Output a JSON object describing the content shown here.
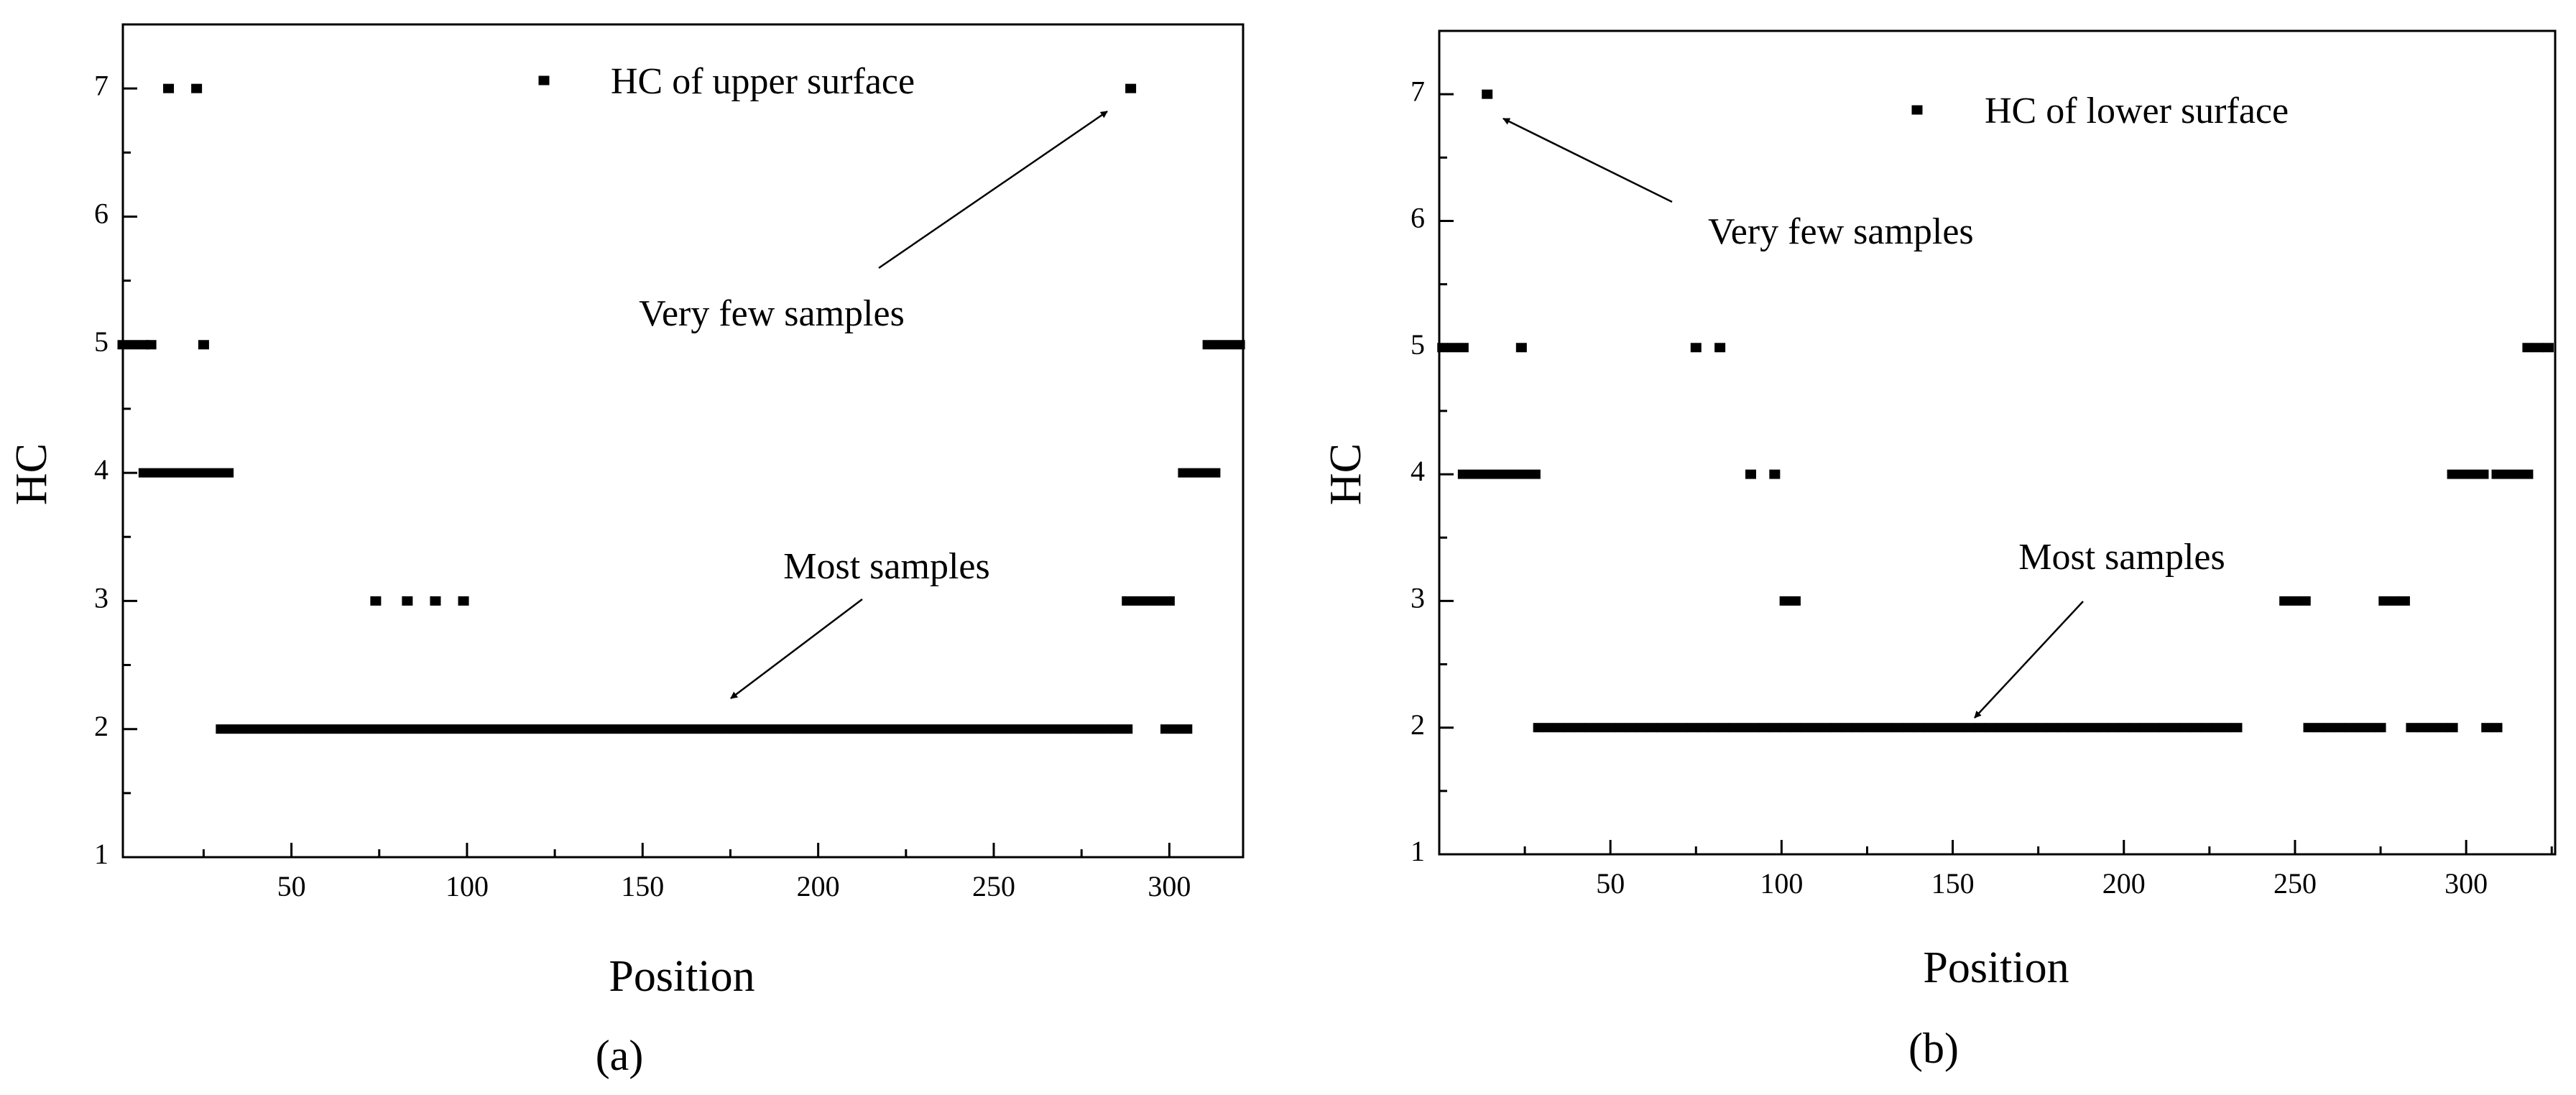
{
  "chart_data": [
    {
      "type": "scatter",
      "xlabel": "Position",
      "ylabel": "HC",
      "subfigure_label": "(a)",
      "annotations": [
        "Very few samples",
        "Most samples"
      ],
      "xlim": [
        2,
        321
      ],
      "ylim": [
        1,
        7.5
      ],
      "xticks": [
        50,
        100,
        150,
        200,
        250,
        300
      ],
      "yticks": [
        1,
        2,
        3,
        4,
        5,
        6,
        7
      ],
      "xminorticks": [
        25,
        75,
        125,
        175,
        225,
        275
      ],
      "yminorticks": [
        1.5,
        2.5,
        3.5,
        4.5,
        5.5,
        6.5
      ],
      "series": [
        {
          "name": "HC of upper surface",
          "color": "#000000",
          "x": [
            15,
            23,
            289,
            2,
            5,
            8,
            10,
            25,
            311,
            314,
            317,
            320,
            8,
            11,
            14,
            17,
            20,
            23,
            26,
            29,
            32,
            304,
            307,
            310,
            313,
            74,
            83,
            91,
            99,
            288,
            291,
            294,
            297,
            300,
            30,
            33,
            36,
            39,
            42,
            45,
            48,
            51,
            54,
            57,
            60,
            63,
            66,
            69,
            72,
            75,
            78,
            81,
            84,
            87,
            90,
            93,
            96,
            99,
            102,
            105,
            108,
            111,
            114,
            117,
            120,
            123,
            126,
            129,
            132,
            135,
            138,
            141,
            144,
            147,
            150,
            153,
            156,
            159,
            162,
            165,
            168,
            171,
            174,
            177,
            180,
            183,
            186,
            189,
            192,
            195,
            198,
            201,
            204,
            207,
            210,
            213,
            216,
            219,
            222,
            225,
            228,
            231,
            234,
            237,
            240,
            243,
            246,
            249,
            252,
            255,
            258,
            261,
            264,
            267,
            270,
            273,
            276,
            279,
            282,
            285,
            288,
            299,
            302,
            305
          ],
          "values": [
            7,
            7,
            7,
            5,
            5,
            5,
            5,
            5,
            5,
            5,
            5,
            5,
            4,
            4,
            4,
            4,
            4,
            4,
            4,
            4,
            4,
            4,
            4,
            4,
            4,
            3,
            3,
            3,
            3,
            3,
            3,
            3,
            3,
            3,
            2,
            2,
            2,
            2,
            2,
            2,
            2,
            2,
            2,
            2,
            2,
            2,
            2,
            2,
            2,
            2,
            2,
            2,
            2,
            2,
            2,
            2,
            2,
            2,
            2,
            2,
            2,
            2,
            2,
            2,
            2,
            2,
            2,
            2,
            2,
            2,
            2,
            2,
            2,
            2,
            2,
            2,
            2,
            2,
            2,
            2,
            2,
            2,
            2,
            2,
            2,
            2,
            2,
            2,
            2,
            2,
            2,
            2,
            2,
            2,
            2,
            2,
            2,
            2,
            2,
            2,
            2,
            2,
            2,
            2,
            2,
            2,
            2,
            2,
            2,
            2,
            2,
            2,
            2,
            2,
            2,
            2,
            2,
            2,
            2,
            2,
            2,
            2,
            2,
            2
          ]
        }
      ]
    },
    {
      "type": "scatter",
      "xlabel": "Position",
      "ylabel": "HC",
      "subfigure_label": "(b)",
      "annotations": [
        "Very few samples",
        "Most samples"
      ],
      "xlim": [
        0,
        326
      ],
      "ylim": [
        1,
        7.5
      ],
      "xticks": [
        50,
        100,
        150,
        200,
        250,
        300
      ],
      "yticks": [
        1,
        2,
        3,
        4,
        5,
        6,
        7
      ],
      "xminorticks": [
        25,
        75,
        125,
        175,
        225,
        275,
        325
      ],
      "yminorticks": [
        1.5,
        2.5,
        3.5,
        4.5,
        5.5,
        6.5
      ],
      "series": [
        {
          "name": "HC of lower surface",
          "color": "#000000",
          "x": [
            14,
            1,
            4,
            7,
            24,
            75,
            82,
            318,
            321,
            324,
            7,
            10,
            13,
            16,
            19,
            22,
            25,
            28,
            91,
            98,
            296,
            299,
            302,
            305,
            309,
            312,
            315,
            318,
            101,
            104,
            247,
            250,
            253,
            276,
            279,
            282,
            29,
            32,
            35,
            38,
            41,
            44,
            47,
            50,
            53,
            56,
            59,
            62,
            65,
            68,
            71,
            74,
            77,
            80,
            83,
            86,
            89,
            92,
            95,
            98,
            101,
            104,
            107,
            110,
            113,
            116,
            119,
            122,
            125,
            128,
            131,
            134,
            137,
            140,
            143,
            146,
            149,
            152,
            155,
            158,
            161,
            164,
            167,
            170,
            173,
            176,
            179,
            182,
            185,
            188,
            191,
            194,
            197,
            200,
            203,
            206,
            209,
            212,
            215,
            218,
            221,
            224,
            227,
            230,
            233,
            254,
            257,
            260,
            263,
            266,
            269,
            272,
            275,
            284,
            287,
            290,
            293,
            296,
            306,
            309
          ],
          "values": [
            7,
            5,
            5,
            5,
            5,
            5,
            5,
            5,
            5,
            5,
            4,
            4,
            4,
            4,
            4,
            4,
            4,
            4,
            4,
            4,
            4,
            4,
            4,
            4,
            4,
            4,
            4,
            4,
            3,
            3,
            3,
            3,
            3,
            3,
            3,
            3,
            2,
            2,
            2,
            2,
            2,
            2,
            2,
            2,
            2,
            2,
            2,
            2,
            2,
            2,
            2,
            2,
            2,
            2,
            2,
            2,
            2,
            2,
            2,
            2,
            2,
            2,
            2,
            2,
            2,
            2,
            2,
            2,
            2,
            2,
            2,
            2,
            2,
            2,
            2,
            2,
            2,
            2,
            2,
            2,
            2,
            2,
            2,
            2,
            2,
            2,
            2,
            2,
            2,
            2,
            2,
            2,
            2,
            2,
            2,
            2,
            2,
            2,
            2,
            2,
            2,
            2,
            2,
            2,
            2,
            2,
            2,
            2,
            2,
            2,
            2,
            2,
            2,
            2,
            2,
            2,
            2,
            2,
            2,
            2
          ]
        }
      ]
    }
  ]
}
